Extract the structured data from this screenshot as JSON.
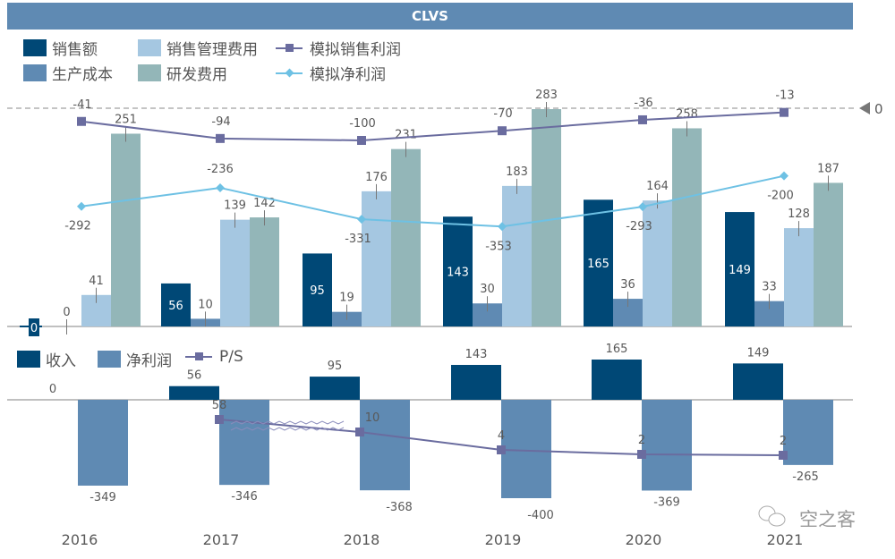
{
  "title": "CLVS",
  "colors": {
    "sales": "#004876",
    "production_cost": "#5f8ab3",
    "sga": "#a5c7e1",
    "rnd": "#93b6b8",
    "sim_sales_profit": "#6a6c9f",
    "sim_net_profit": "#6ec1e4",
    "revenue": "#004876",
    "net_profit": "#5f8ab3",
    "ps": "#6a6c9f",
    "axis": "#808080",
    "label": "#595959"
  },
  "watermark": "空之客",
  "zero_marker_label": "0",
  "chart_data": [
    {
      "type": "bar",
      "title": "CLVS",
      "categories": [
        "2016",
        "2017",
        "2018",
        "2019",
        "2020",
        "2021"
      ],
      "legend_position": "top-left",
      "series": [
        {
          "name": "销售额",
          "kind": "bar",
          "values": [
            0,
            56,
            95,
            143,
            165,
            149
          ]
        },
        {
          "name": "生产成本",
          "kind": "bar",
          "values": [
            0,
            10,
            19,
            30,
            36,
            33
          ]
        },
        {
          "name": "销售管理费用",
          "kind": "bar",
          "values": [
            41,
            139,
            176,
            183,
            164,
            128
          ]
        },
        {
          "name": "研发费用",
          "kind": "bar",
          "values": [
            251,
            142,
            231,
            283,
            258,
            187
          ]
        },
        {
          "name": "模拟销售利润",
          "kind": "line",
          "values": [
            -41,
            -94,
            -100,
            -70,
            -36,
            -13
          ]
        },
        {
          "name": "模拟净利润",
          "kind": "line",
          "values": [
            -292,
            -236,
            -331,
            -353,
            -293,
            -200
          ]
        }
      ],
      "ylim": [
        0,
        283
      ],
      "reference_line": {
        "label": "0",
        "style": "dashed"
      }
    },
    {
      "type": "bar",
      "categories": [
        "2016",
        "2017",
        "2018",
        "2019",
        "2020",
        "2021"
      ],
      "legend_position": "top-left",
      "series": [
        {
          "name": "收入",
          "kind": "bar",
          "values": [
            0,
            56,
            95,
            143,
            165,
            149
          ]
        },
        {
          "name": "净利润",
          "kind": "bar",
          "values": [
            -349,
            -346,
            -368,
            -400,
            -369,
            -265
          ]
        },
        {
          "name": "P/S",
          "kind": "line",
          "values": [
            null,
            58,
            10,
            4,
            2,
            2
          ]
        }
      ],
      "xlabel": "",
      "ylabel": ""
    }
  ],
  "legend_top": [
    {
      "label": "销售额",
      "type": "box",
      "color_key": "sales"
    },
    {
      "label": "销售管理费用",
      "type": "box",
      "color_key": "sga"
    },
    {
      "label": "模拟销售利润",
      "type": "line",
      "color_key": "sim_sales_profit"
    },
    {
      "label": "生产成本",
      "type": "box",
      "color_key": "production_cost"
    },
    {
      "label": "研发费用",
      "type": "box",
      "color_key": "rnd"
    },
    {
      "label": "模拟净利润",
      "type": "line",
      "color_key": "sim_net_profit"
    }
  ],
  "legend_bottom": [
    {
      "label": "收入",
      "type": "box",
      "color_key": "revenue"
    },
    {
      "label": "净利润",
      "type": "box",
      "color_key": "net_profit"
    },
    {
      "label": "P/S",
      "type": "line",
      "color_key": "ps"
    }
  ]
}
